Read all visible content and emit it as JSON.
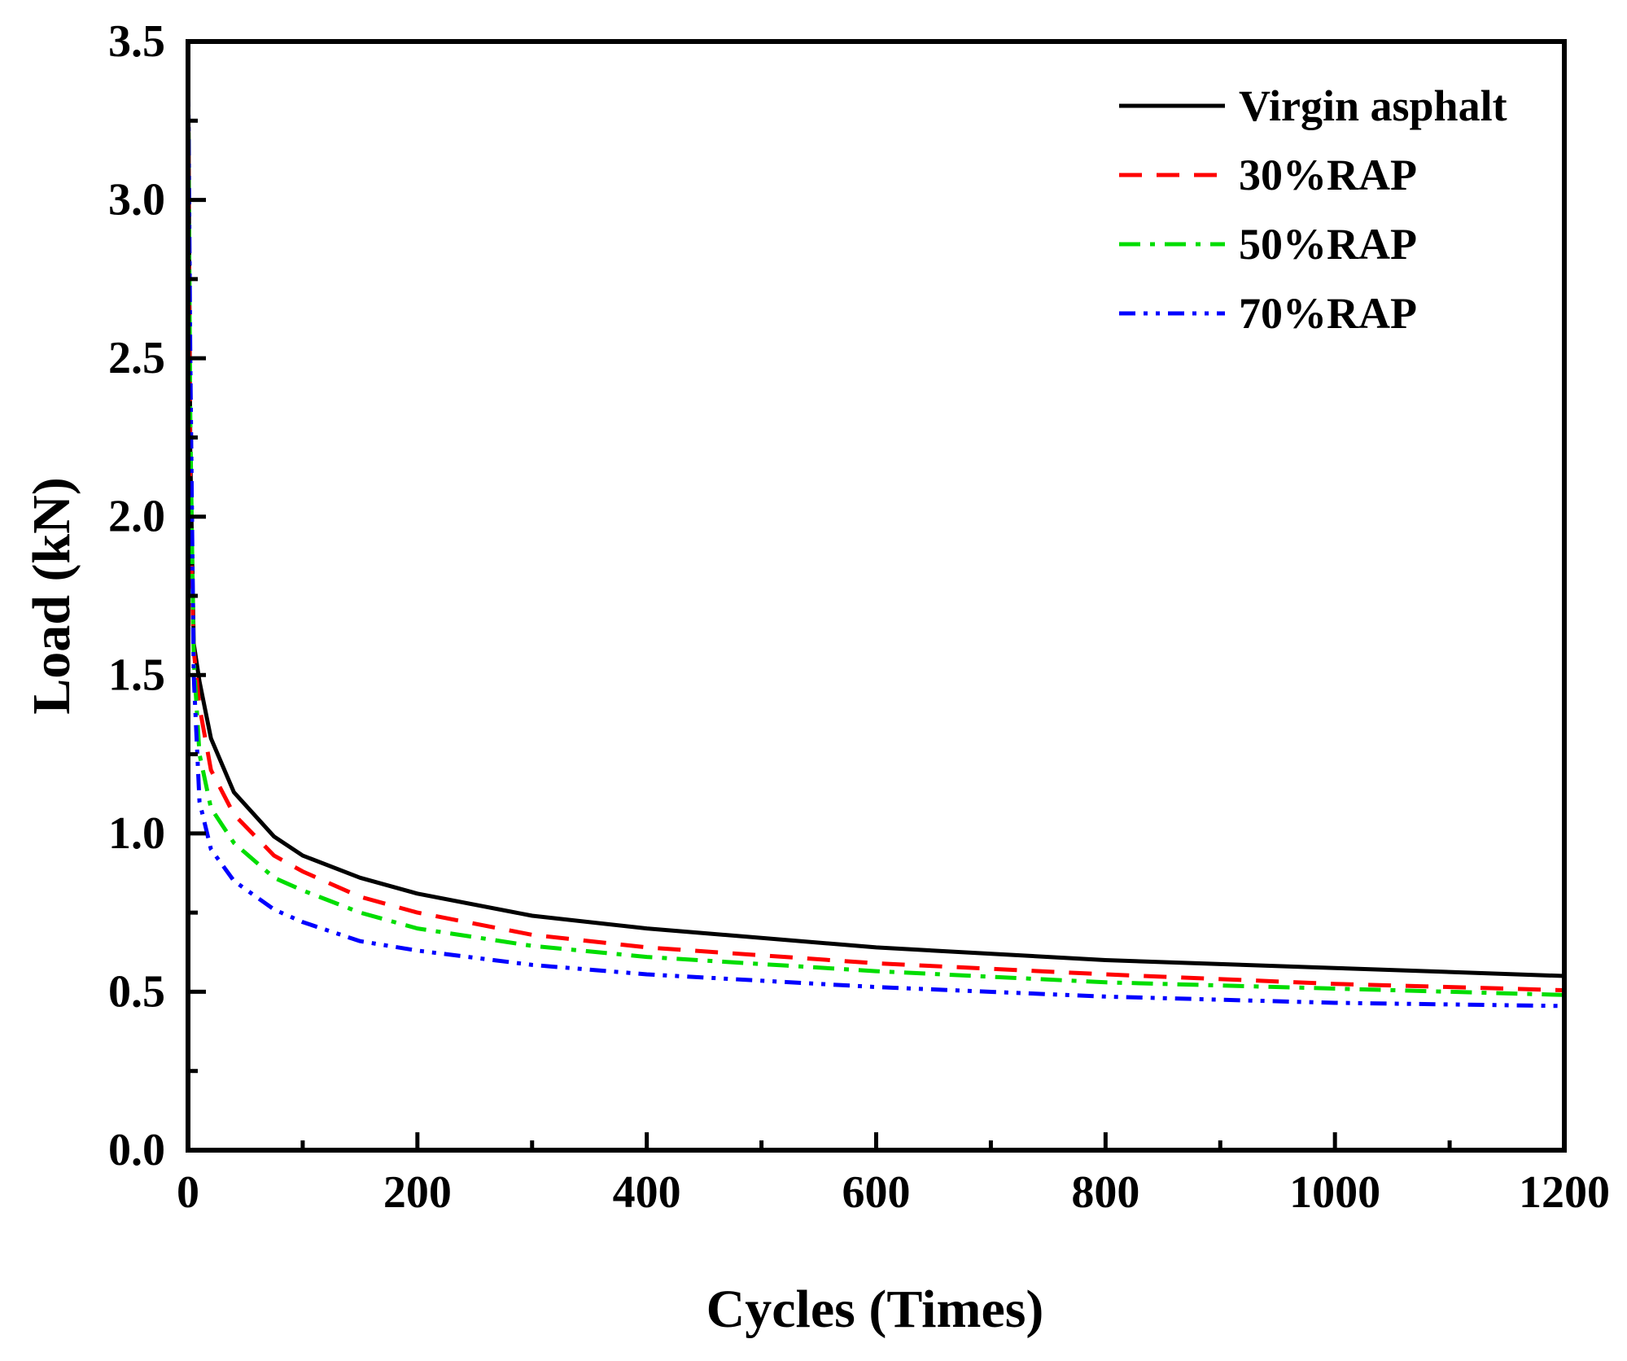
{
  "chart_data": {
    "type": "line",
    "title": "",
    "xlabel": "Cycles (Times)",
    "ylabel": "Load (kN)",
    "xlim": [
      0,
      1200
    ],
    "ylim": [
      0,
      3.5
    ],
    "xticks": [
      "0",
      "200",
      "400",
      "600",
      "800",
      "1000",
      "1200"
    ],
    "yticks": [
      "0.0",
      "0.5",
      "1.0",
      "1.5",
      "2.0",
      "2.5",
      "3.0",
      "3.5"
    ],
    "grid": false,
    "legend_position": "top-right",
    "series": [
      {
        "name": "Virgin asphalt",
        "color": "#000000",
        "dash": "solid",
        "x": [
          0,
          2,
          5,
          10,
          20,
          40,
          75,
          100,
          150,
          200,
          300,
          400,
          600,
          800,
          1000,
          1200
        ],
        "y": [
          3.5,
          2.2,
          1.6,
          1.48,
          1.3,
          1.13,
          0.99,
          0.93,
          0.86,
          0.81,
          0.74,
          0.7,
          0.64,
          0.6,
          0.575,
          0.55
        ]
      },
      {
        "name": "30%RAP",
        "color": "#ff0000",
        "dash": "dash",
        "x": [
          0,
          2,
          5,
          10,
          20,
          40,
          75,
          100,
          150,
          200,
          300,
          400,
          600,
          800,
          1000,
          1200
        ],
        "y": [
          3.5,
          2.0,
          1.58,
          1.4,
          1.2,
          1.06,
          0.93,
          0.88,
          0.8,
          0.75,
          0.68,
          0.64,
          0.59,
          0.555,
          0.525,
          0.505
        ]
      },
      {
        "name": "50%RAP",
        "color": "#00dd00",
        "dash": "dashdot",
        "x": [
          0,
          2,
          5,
          10,
          20,
          40,
          75,
          100,
          150,
          200,
          300,
          400,
          600,
          800,
          1000,
          1200
        ],
        "y": [
          3.5,
          2.3,
          1.55,
          1.25,
          1.08,
          0.97,
          0.86,
          0.82,
          0.75,
          0.7,
          0.645,
          0.61,
          0.565,
          0.53,
          0.51,
          0.49
        ]
      },
      {
        "name": "70%RAP",
        "color": "#0000ff",
        "dash": "dashdotdot",
        "x": [
          0,
          2,
          5,
          10,
          20,
          40,
          75,
          100,
          150,
          200,
          300,
          400,
          600,
          800,
          1000,
          1200
        ],
        "y": [
          3.5,
          2.5,
          1.5,
          1.1,
          0.95,
          0.85,
          0.76,
          0.72,
          0.66,
          0.63,
          0.585,
          0.555,
          0.515,
          0.485,
          0.465,
          0.455
        ]
      }
    ]
  }
}
